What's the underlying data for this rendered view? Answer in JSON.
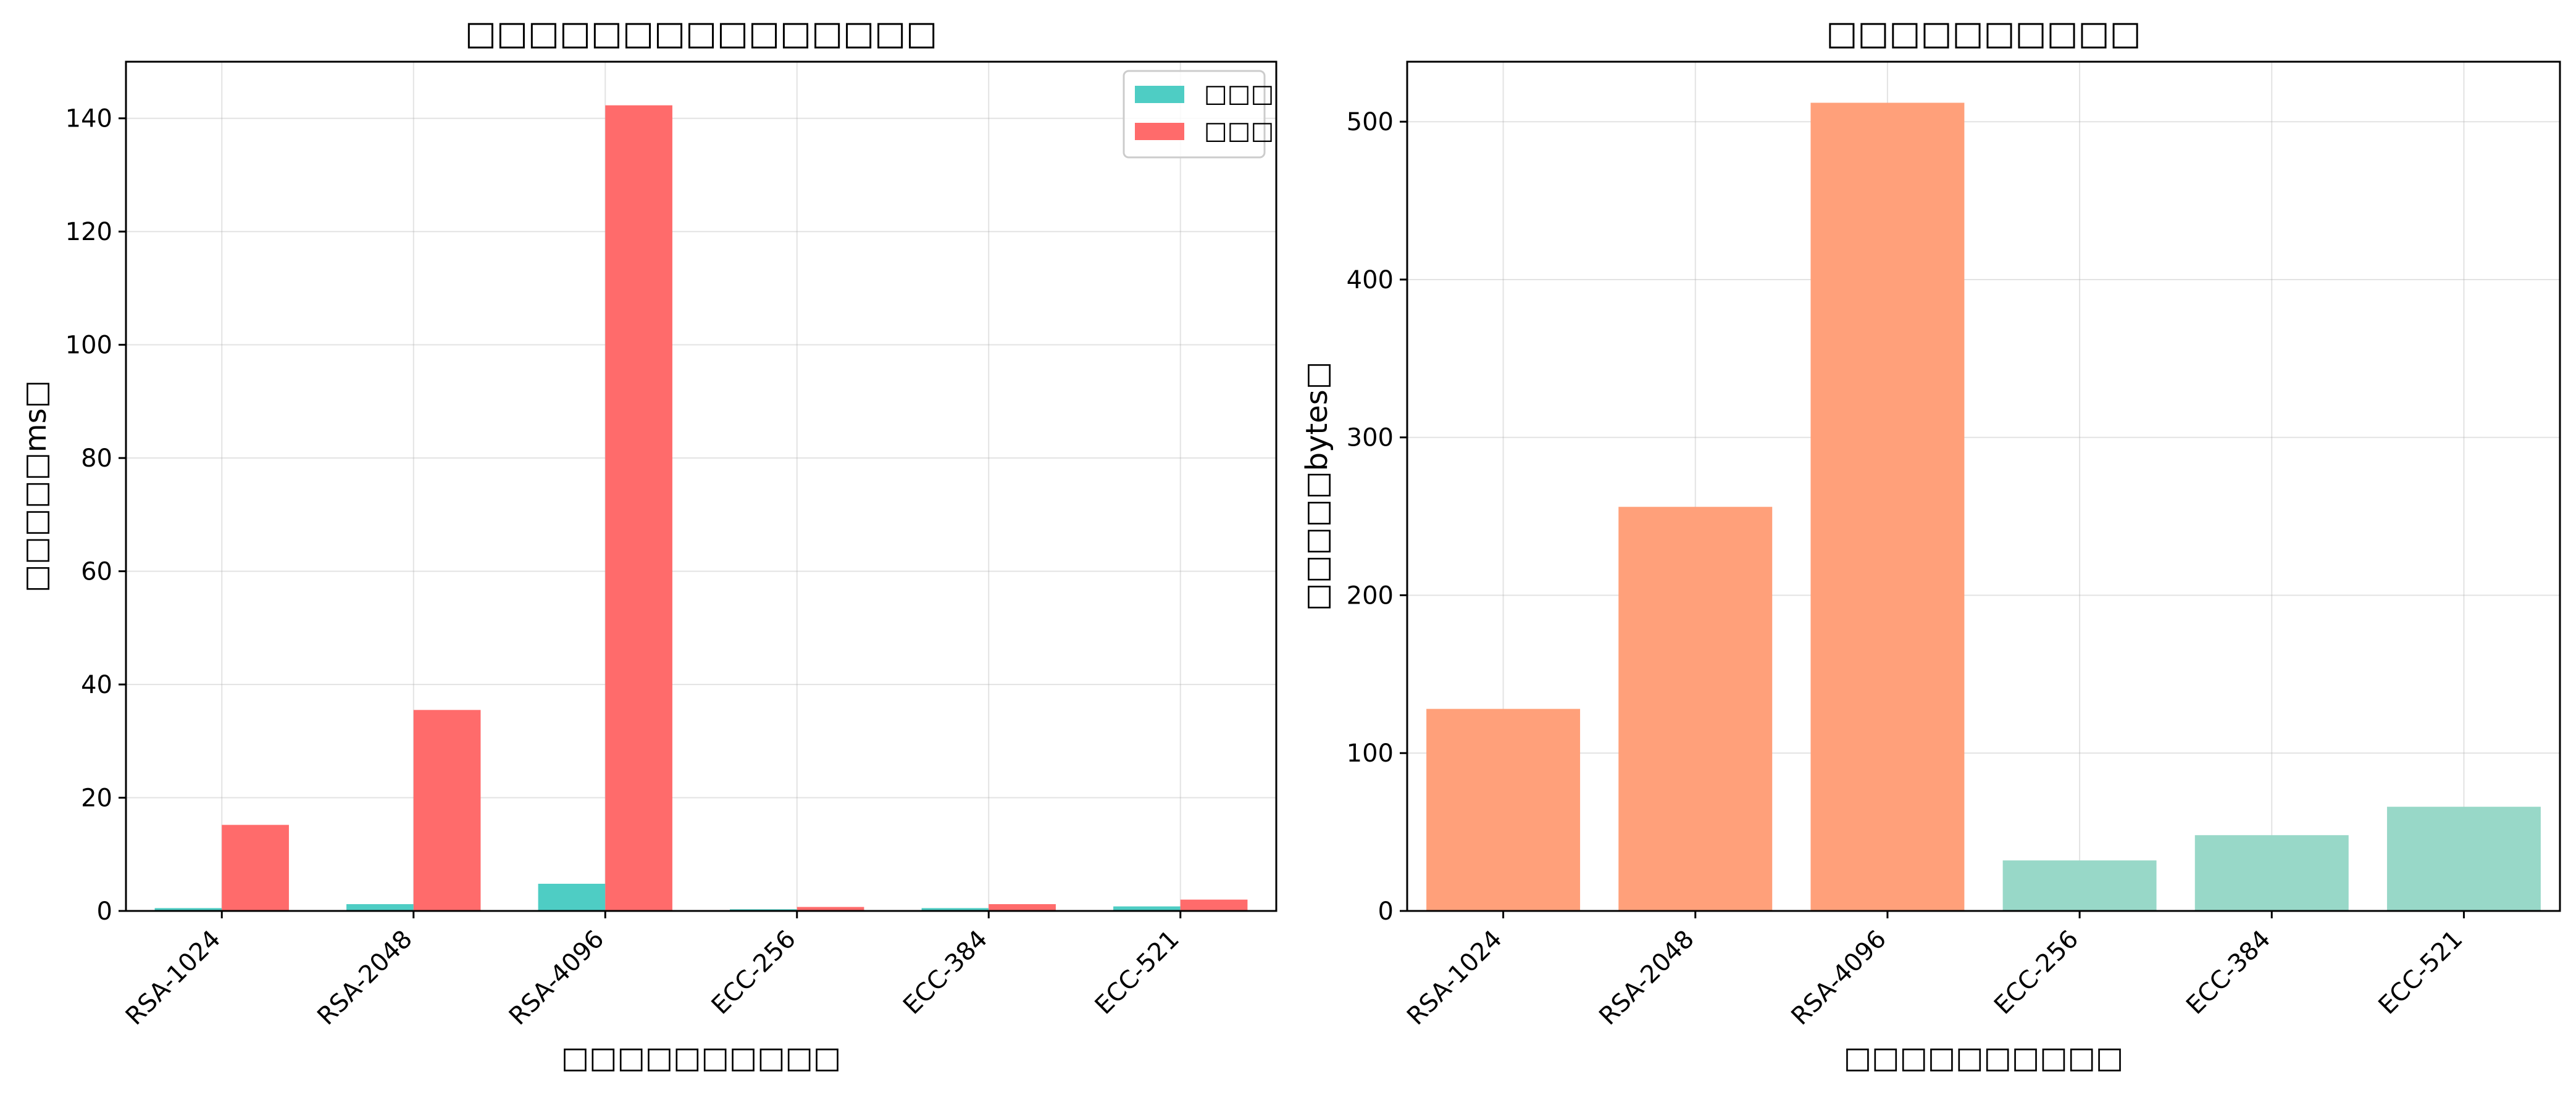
{
  "chart_data": [
    {
      "type": "bar",
      "title": "□□□□□□□□□□□□□□□",
      "xlabel": "□□□□□□□□□□",
      "ylabel": "□□□□□ms□",
      "categories": [
        "RSA-1024",
        "RSA-2048",
        "RSA-4096",
        "ECC-256",
        "ECC-384",
        "ECC-521"
      ],
      "series": [
        {
          "name": "□□□",
          "color": "#4ECDC4",
          "values": [
            0.5,
            1.2,
            4.8,
            0.3,
            0.5,
            0.8
          ]
        },
        {
          "name": "□□□",
          "color": "#FF6B6B",
          "values": [
            15.2,
            35.5,
            142.3,
            0.7,
            1.2,
            2.0
          ]
        }
      ],
      "ylim": [
        0,
        150
      ],
      "yticks": [
        0,
        20,
        40,
        60,
        80,
        100,
        120,
        140
      ],
      "grid": true,
      "legend": "top-right"
    },
    {
      "type": "bar",
      "title": "□□□□□□□□□□",
      "xlabel": "□□□□□□□□□□",
      "ylabel": "□□□□□bytes□",
      "categories": [
        "RSA-1024",
        "RSA-2048",
        "RSA-4096",
        "ECC-256",
        "ECC-384",
        "ECC-521"
      ],
      "values": [
        128,
        256,
        512,
        32,
        48,
        66
      ],
      "colors": [
        "#FFA07A",
        "#FFA07A",
        "#FFA07A",
        "#98D8C8",
        "#98D8C8",
        "#98D8C8"
      ],
      "ylim": [
        0,
        538
      ],
      "yticks": [
        0,
        100,
        200,
        300,
        400,
        500
      ],
      "grid": true
    }
  ]
}
